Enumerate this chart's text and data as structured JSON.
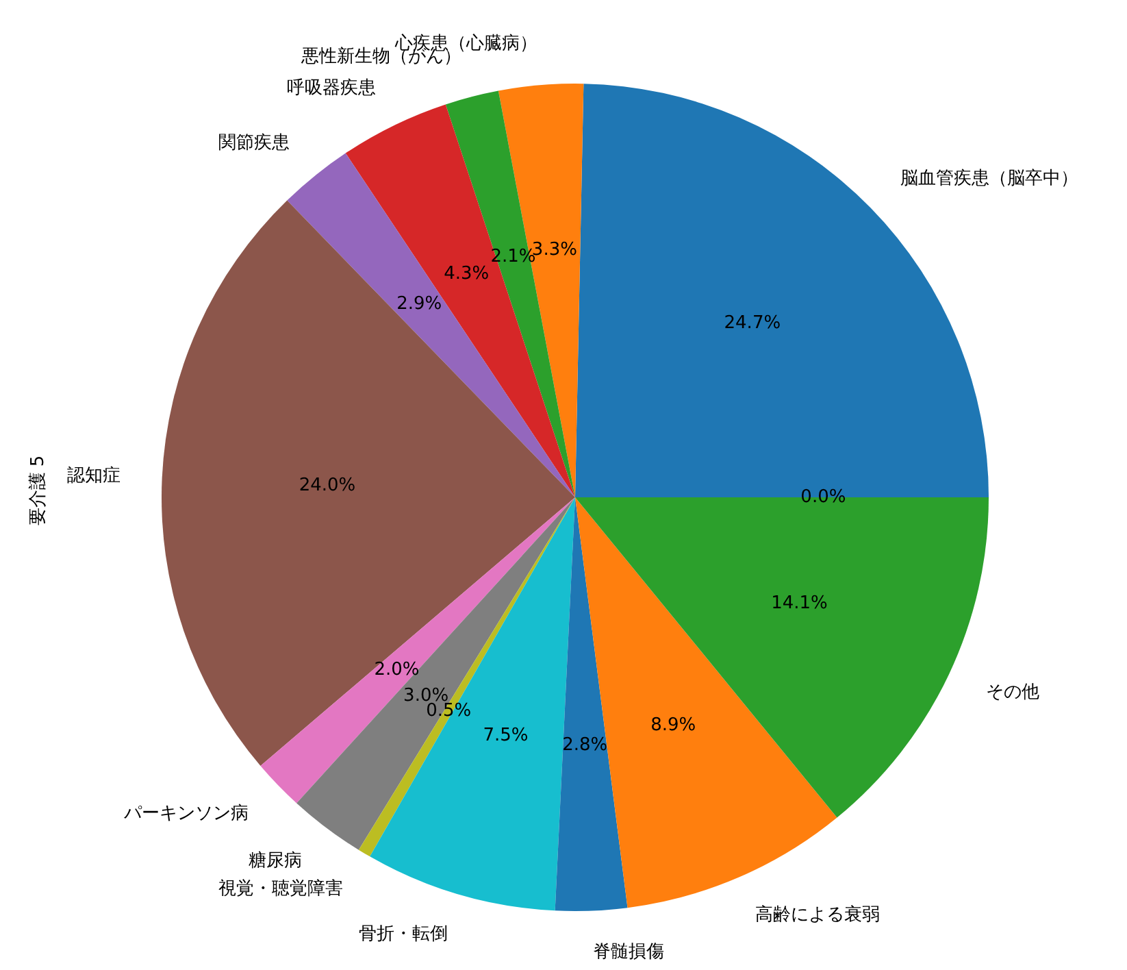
{
  "chart_data": {
    "type": "pie",
    "ylabel": "要介護 5",
    "categories": [
      "脳血管疾患（脳卒中）",
      "心疾患（心臓病）",
      "悪性新生物（がん）",
      "呼吸器疾患",
      "関節疾患",
      "認知症",
      "パーキンソン病",
      "糖尿病",
      "視覚・聴覚障害",
      "骨折・転倒",
      "脊髄損傷",
      "高齢による衰弱",
      "その他",
      null
    ],
    "values": [
      24.7,
      3.3,
      2.1,
      4.3,
      2.9,
      24.0,
      2.0,
      3.0,
      0.5,
      7.5,
      2.8,
      8.9,
      14.1,
      0.0
    ],
    "value_labels": [
      "24.7%",
      "3.3%",
      "2.1%",
      "4.3%",
      "2.9%",
      "24.0%",
      "2.0%",
      "3.0%",
      "0.5%",
      "7.5%",
      "2.8%",
      "8.9%",
      "14.1%",
      "0.0%"
    ],
    "colors": [
      "#1f77b4",
      "#ff7f0e",
      "#2ca02c",
      "#d62728",
      "#9467bd",
      "#8c564b",
      "#e377c2",
      "#7f7f7f",
      "#bcbd22",
      "#17becf",
      "#1f77b4",
      "#ff7f0e",
      "#2ca02c",
      "#d62728"
    ]
  }
}
